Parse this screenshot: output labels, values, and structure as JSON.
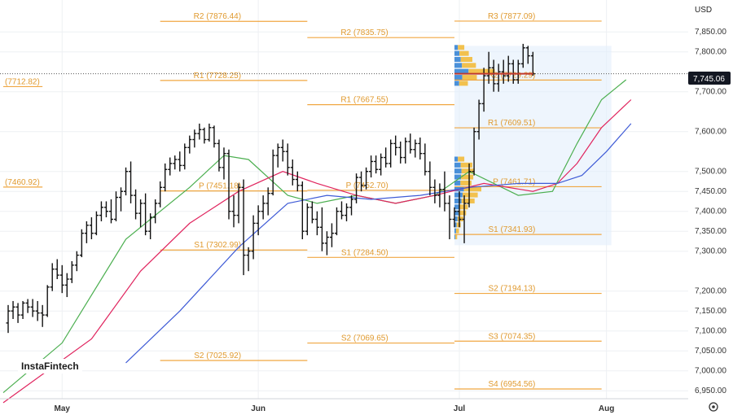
{
  "currency": "USD",
  "watermark": "InstaFintech",
  "last_price_label": "7,745.06",
  "chart_data": {
    "type": "bar",
    "style": "ohlc",
    "ylim": [
      6930,
      7930
    ],
    "y_ticks": [
      {
        "value": 7850,
        "label": "7,850.00"
      },
      {
        "value": 7800,
        "label": "7,800.00"
      },
      {
        "value": 7700,
        "label": "7,700.00"
      },
      {
        "value": 7600,
        "label": "7,600.00"
      },
      {
        "value": 7500,
        "label": "7,500.00"
      },
      {
        "value": 7450,
        "label": "7,450.00"
      },
      {
        "value": 7400,
        "label": "7,400.00"
      },
      {
        "value": 7350,
        "label": "7,350.00"
      },
      {
        "value": 7300,
        "label": "7,300.00"
      },
      {
        "value": 7200,
        "label": "7,200.00"
      },
      {
        "value": 7150,
        "label": "7,150.00"
      },
      {
        "value": 7100,
        "label": "7,100.00"
      },
      {
        "value": 7050,
        "label": "7,050.00"
      },
      {
        "value": 7000,
        "label": "7,000.00"
      },
      {
        "value": 6950,
        "label": "6,950.00"
      }
    ],
    "x_ticks": [
      {
        "index": 12,
        "label": "May"
      },
      {
        "index": 52,
        "label": "Jun"
      },
      {
        "index": 93,
        "label": "Jul"
      },
      {
        "index": 123,
        "label": "Aug"
      }
    ],
    "last_price": 7745.06,
    "bars": [
      [
        7120,
        7165,
        7095,
        7150
      ],
      [
        7150,
        7175,
        7130,
        7160
      ],
      [
        7160,
        7170,
        7120,
        7140
      ],
      [
        7140,
        7175,
        7130,
        7170
      ],
      [
        7170,
        7180,
        7145,
        7160
      ],
      [
        7160,
        7180,
        7135,
        7150
      ],
      [
        7150,
        7175,
        7125,
        7145
      ],
      [
        7145,
        7165,
        7110,
        7140
      ],
      [
        7140,
        7215,
        7135,
        7210
      ],
      [
        7210,
        7270,
        7200,
        7255
      ],
      [
        7255,
        7280,
        7230,
        7240
      ],
      [
        7240,
        7265,
        7195,
        7215
      ],
      [
        7215,
        7245,
        7185,
        7230
      ],
      [
        7230,
        7275,
        7220,
        7265
      ],
      [
        7265,
        7300,
        7250,
        7290
      ],
      [
        7290,
        7355,
        7285,
        7345
      ],
      [
        7345,
        7375,
        7320,
        7365
      ],
      [
        7365,
        7385,
        7330,
        7345
      ],
      [
        7345,
        7400,
        7340,
        7390
      ],
      [
        7390,
        7425,
        7375,
        7410
      ],
      [
        7410,
        7425,
        7385,
        7400
      ],
      [
        7400,
        7430,
        7370,
        7380
      ],
      [
        7380,
        7450,
        7375,
        7435
      ],
      [
        7435,
        7460,
        7400,
        7450
      ],
      [
        7450,
        7510,
        7440,
        7500
      ],
      [
        7500,
        7525,
        7420,
        7440
      ],
      [
        7440,
        7455,
        7380,
        7395
      ],
      [
        7395,
        7430,
        7360,
        7420
      ],
      [
        7420,
        7445,
        7340,
        7350
      ],
      [
        7350,
        7395,
        7330,
        7385
      ],
      [
        7385,
        7430,
        7370,
        7420
      ],
      [
        7420,
        7475,
        7410,
        7460
      ],
      [
        7460,
        7520,
        7450,
        7505
      ],
      [
        7505,
        7535,
        7490,
        7520
      ],
      [
        7520,
        7540,
        7505,
        7530
      ],
      [
        7530,
        7550,
        7500,
        7515
      ],
      [
        7515,
        7570,
        7505,
        7560
      ],
      [
        7560,
        7590,
        7545,
        7580
      ],
      [
        7580,
        7605,
        7560,
        7595
      ],
      [
        7595,
        7620,
        7580,
        7605
      ],
      [
        7605,
        7610,
        7570,
        7580
      ],
      [
        7580,
        7620,
        7575,
        7610
      ],
      [
        7610,
        7615,
        7560,
        7570
      ],
      [
        7570,
        7580,
        7500,
        7510
      ],
      [
        7510,
        7560,
        7480,
        7545
      ],
      [
        7545,
        7555,
        7380,
        7400
      ],
      [
        7400,
        7440,
        7360,
        7390
      ],
      [
        7390,
        7470,
        7370,
        7460
      ],
      [
        7460,
        7480,
        7240,
        7290
      ],
      [
        7290,
        7310,
        7250,
        7300
      ],
      [
        7300,
        7390,
        7280,
        7370
      ],
      [
        7370,
        7415,
        7340,
        7400
      ],
      [
        7400,
        7440,
        7380,
        7420
      ],
      [
        7420,
        7460,
        7390,
        7445
      ],
      [
        7445,
        7555,
        7440,
        7540
      ],
      [
        7540,
        7570,
        7510,
        7560
      ],
      [
        7560,
        7580,
        7525,
        7550
      ],
      [
        7550,
        7570,
        7490,
        7510
      ],
      [
        7510,
        7530,
        7465,
        7480
      ],
      [
        7480,
        7500,
        7450,
        7465
      ],
      [
        7465,
        7475,
        7330,
        7350
      ],
      [
        7350,
        7420,
        7340,
        7410
      ],
      [
        7410,
        7425,
        7370,
        7380
      ],
      [
        7380,
        7400,
        7340,
        7360
      ],
      [
        7360,
        7410,
        7300,
        7320
      ],
      [
        7320,
        7350,
        7290,
        7335
      ],
      [
        7335,
        7370,
        7310,
        7345
      ],
      [
        7345,
        7410,
        7340,
        7400
      ],
      [
        7400,
        7425,
        7380,
        7390
      ],
      [
        7390,
        7420,
        7375,
        7410
      ],
      [
        7410,
        7440,
        7390,
        7430
      ],
      [
        7430,
        7495,
        7420,
        7485
      ],
      [
        7485,
        7500,
        7450,
        7465
      ],
      [
        7465,
        7510,
        7455,
        7500
      ],
      [
        7500,
        7540,
        7485,
        7525
      ],
      [
        7525,
        7540,
        7495,
        7505
      ],
      [
        7505,
        7545,
        7490,
        7535
      ],
      [
        7535,
        7560,
        7510,
        7520
      ],
      [
        7520,
        7580,
        7510,
        7570
      ],
      [
        7570,
        7590,
        7540,
        7560
      ],
      [
        7560,
        7575,
        7520,
        7535
      ],
      [
        7535,
        7585,
        7520,
        7575
      ],
      [
        7575,
        7595,
        7545,
        7555
      ],
      [
        7555,
        7580,
        7535,
        7570
      ],
      [
        7570,
        7585,
        7530,
        7545
      ],
      [
        7545,
        7570,
        7490,
        7500
      ],
      [
        7500,
        7525,
        7440,
        7460
      ],
      [
        7460,
        7480,
        7420,
        7440
      ],
      [
        7440,
        7470,
        7410,
        7455
      ],
      [
        7455,
        7500,
        7400,
        7420
      ],
      [
        7420,
        7440,
        7330,
        7380
      ],
      [
        7380,
        7410,
        7360,
        7400
      ],
      [
        7400,
        7450,
        7360,
        7380
      ],
      [
        7380,
        7440,
        7320,
        7420
      ],
      [
        7420,
        7520,
        7410,
        7500
      ],
      [
        7500,
        7610,
        7490,
        7600
      ],
      [
        7600,
        7680,
        7580,
        7670
      ],
      [
        7670,
        7760,
        7650,
        7740
      ],
      [
        7740,
        7800,
        7720,
        7760
      ],
      [
        7760,
        7780,
        7700,
        7720
      ],
      [
        7720,
        7770,
        7700,
        7750
      ],
      [
        7750,
        7780,
        7720,
        7740
      ],
      [
        7740,
        7790,
        7725,
        7770
      ],
      [
        7770,
        7780,
        7720,
        7730
      ],
      [
        7730,
        7780,
        7720,
        7770
      ],
      [
        7770,
        7820,
        7760,
        7810
      ],
      [
        7810,
        7815,
        7770,
        7790
      ],
      [
        7790,
        7800,
        7740,
        7745
      ]
    ],
    "ma_series": [
      {
        "color": "#4caf50",
        "values": [
          [
            0,
            6945
          ],
          [
            12,
            7070
          ],
          [
            25,
            7330
          ],
          [
            38,
            7460
          ],
          [
            45,
            7540
          ],
          [
            50,
            7530
          ],
          [
            58,
            7440
          ],
          [
            64,
            7420
          ],
          [
            72,
            7440
          ],
          [
            80,
            7420
          ],
          [
            88,
            7440
          ],
          [
            95,
            7500
          ],
          [
            105,
            7440
          ],
          [
            112,
            7450
          ],
          [
            117,
            7570
          ],
          [
            122,
            7680
          ],
          [
            127,
            7730
          ]
        ]
      },
      {
        "color": "#e0245e",
        "values": [
          [
            0,
            6920
          ],
          [
            18,
            7080
          ],
          [
            28,
            7250
          ],
          [
            38,
            7370
          ],
          [
            48,
            7450
          ],
          [
            57,
            7500
          ],
          [
            64,
            7470
          ],
          [
            72,
            7440
          ],
          [
            80,
            7420
          ],
          [
            88,
            7440
          ],
          [
            98,
            7470
          ],
          [
            108,
            7450
          ],
          [
            113,
            7470
          ],
          [
            117,
            7520
          ],
          [
            122,
            7610
          ],
          [
            128,
            7680
          ]
        ]
      },
      {
        "color": "#3f5bd6",
        "values": [
          [
            25,
            7020
          ],
          [
            36,
            7150
          ],
          [
            48,
            7310
          ],
          [
            58,
            7420
          ],
          [
            66,
            7440
          ],
          [
            75,
            7430
          ],
          [
            85,
            7440
          ],
          [
            95,
            7460
          ],
          [
            105,
            7470
          ],
          [
            113,
            7470
          ],
          [
            118,
            7490
          ],
          [
            123,
            7550
          ],
          [
            128,
            7620
          ]
        ]
      }
    ],
    "levels": [
      {
        "label": "R2 (7876.44)",
        "value": 7876.44,
        "from": 32,
        "to": 62
      },
      {
        "label": "R1 (7728.25)",
        "value": 7728.25,
        "from": 32,
        "to": 62
      },
      {
        "label": "P (7451.18)",
        "value": 7451.18,
        "from": 32,
        "to": 62
      },
      {
        "label": "S1 (7302.99)",
        "value": 7302.99,
        "from": 32,
        "to": 62
      },
      {
        "label": "S2 (7025.92)",
        "value": 7025.92,
        "from": 32,
        "to": 62
      },
      {
        "label": "R2 (7835.75)",
        "value": 7835.75,
        "from": 62,
        "to": 92
      },
      {
        "label": "R1 (7667.55)",
        "value": 7667.55,
        "from": 62,
        "to": 92
      },
      {
        "label": "P (7452.70)",
        "value": 7452.7,
        "from": 62,
        "to": 92
      },
      {
        "label": "S1 (7284.50)",
        "value": 7284.5,
        "from": 62,
        "to": 92
      },
      {
        "label": "S2 (7069.65)",
        "value": 7069.65,
        "from": 62,
        "to": 92
      },
      {
        "label": "R3 (7877.09)",
        "value": 7877.09,
        "from": 92,
        "to": 122
      },
      {
        "label": "R2 (7729.29)",
        "value": 7729.29,
        "from": 92,
        "to": 122
      },
      {
        "label": "R1 (7609.51)",
        "value": 7609.51,
        "from": 92,
        "to": 122
      },
      {
        "label": "P (7461.71)",
        "value": 7461.71,
        "from": 92,
        "to": 122
      },
      {
        "label": "S1 (7341.93)",
        "value": 7341.93,
        "from": 92,
        "to": 122
      },
      {
        "label": "S2 (7194.13)",
        "value": 7194.13,
        "from": 92,
        "to": 122
      },
      {
        "label": "S3 (7074.35)",
        "value": 7074.35,
        "from": 92,
        "to": 122
      },
      {
        "label": "S4 (6954.56)",
        "value": 6954.56,
        "from": 92,
        "to": 122
      },
      {
        "label": "(7712.82)",
        "value": 7712.82,
        "from": 0,
        "to": 8
      },
      {
        "label": "(7460.92)",
        "value": 7460.92,
        "from": 0,
        "to": 8
      }
    ],
    "volume_profile": {
      "range_start": 92,
      "range_end": 124,
      "price_top": 7815,
      "price_bottom": 7315,
      "rows": [
        [
          7810,
          0.22
        ],
        [
          7795,
          0.32
        ],
        [
          7780,
          0.4
        ],
        [
          7765,
          0.48
        ],
        [
          7750,
          0.9
        ],
        [
          7735,
          0.5
        ],
        [
          7720,
          0.3
        ],
        [
          7530,
          0.22
        ],
        [
          7515,
          0.4
        ],
        [
          7500,
          0.45
        ],
        [
          7485,
          0.42
        ],
        [
          7470,
          0.38
        ],
        [
          7455,
          0.6
        ],
        [
          7440,
          0.52
        ],
        [
          7425,
          0.45
        ],
        [
          7410,
          0.3
        ],
        [
          7395,
          0.26
        ],
        [
          7380,
          0.2
        ],
        [
          7365,
          0.14
        ],
        [
          7350,
          0.1
        ],
        [
          7335,
          0.06
        ]
      ],
      "poc": 7745
    }
  }
}
